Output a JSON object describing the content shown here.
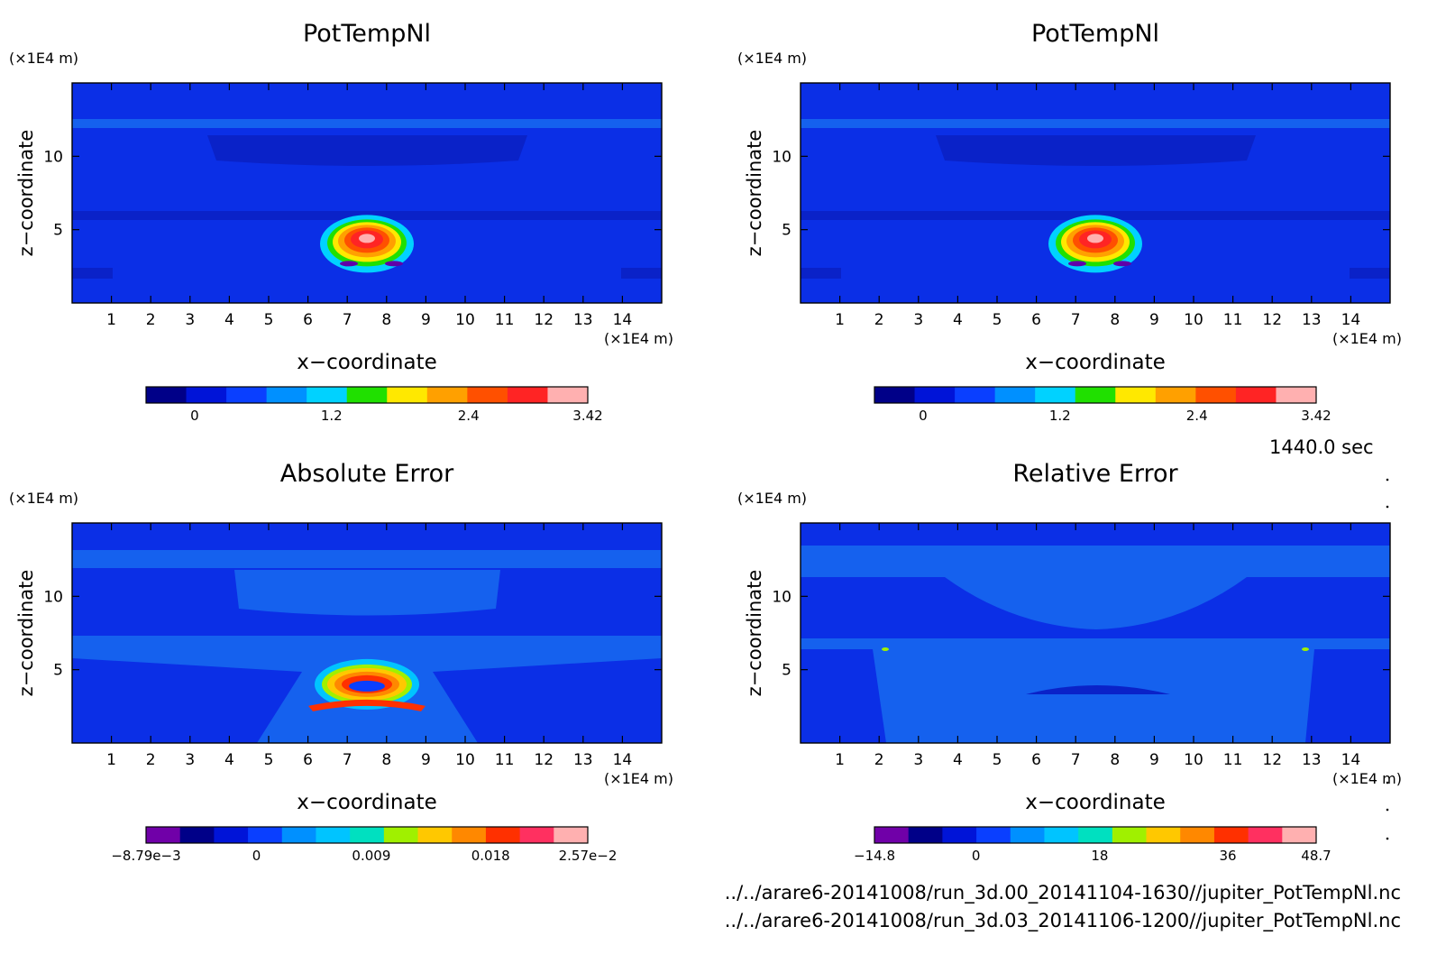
{
  "time_label": "1440.0 sec",
  "footer_lines": [
    "../../arare6-20141008/run_3d.00_20141104-1630//jupiter_PotTempNl.nc",
    "../../arare6-20141008/run_3d.03_20141106-1200//jupiter_PotTempNl.nc"
  ],
  "colors": {
    "background_field": "#0b2fe6",
    "layer_light": "#1561ee",
    "layer_dark": "#0a22c8"
  },
  "chart_data": [
    {
      "type": "heatmap",
      "title": "PotTempNl",
      "xlabel": "x−coordinate",
      "ylabel": "z−coordinate",
      "x_unit": "(×1E4 m)",
      "y_unit": "(×1E4 m)",
      "xlim": [
        0,
        15
      ],
      "ylim": [
        0,
        15
      ],
      "x_ticks": [
        1,
        2,
        3,
        4,
        5,
        6,
        7,
        8,
        9,
        10,
        11,
        12,
        13,
        14
      ],
      "y_ticks": [
        5,
        10
      ],
      "feature": {
        "x": 7.5,
        "z": 4.4,
        "peak": 3.42
      },
      "colorbar": {
        "colors": [
          "#000088",
          "#0014d8",
          "#0a3fff",
          "#0090ff",
          "#00d2ff",
          "#20e000",
          "#ffe800",
          "#ffa000",
          "#ff5000",
          "#ff2424",
          "#ffb0b0"
        ],
        "ticks": [
          "0",
          "1.2",
          "2.4",
          "3.42"
        ],
        "tick_pos": [
          0.11,
          0.42,
          0.73,
          1.0
        ]
      }
    },
    {
      "type": "heatmap",
      "title": "PotTempNl",
      "xlabel": "x−coordinate",
      "ylabel": "z−coordinate",
      "x_unit": "(×1E4 m)",
      "y_unit": "(×1E4 m)",
      "xlim": [
        0,
        15
      ],
      "ylim": [
        0,
        15
      ],
      "x_ticks": [
        1,
        2,
        3,
        4,
        5,
        6,
        7,
        8,
        9,
        10,
        11,
        12,
        13,
        14
      ],
      "y_ticks": [
        5,
        10
      ],
      "feature": {
        "x": 7.5,
        "z": 4.4,
        "peak": 3.42
      },
      "colorbar": {
        "colors": [
          "#000088",
          "#0014d8",
          "#0a3fff",
          "#0090ff",
          "#00d2ff",
          "#20e000",
          "#ffe800",
          "#ffa000",
          "#ff5000",
          "#ff2424",
          "#ffb0b0"
        ],
        "ticks": [
          "0",
          "1.2",
          "2.4",
          "3.42"
        ],
        "tick_pos": [
          0.11,
          0.42,
          0.73,
          1.0
        ]
      }
    },
    {
      "type": "heatmap",
      "title": "Absolute Error",
      "xlabel": "x−coordinate",
      "ylabel": "z−coordinate",
      "x_unit": "(×1E4 m)",
      "y_unit": "(×1E4 m)",
      "xlim": [
        0,
        15
      ],
      "ylim": [
        0,
        15
      ],
      "x_ticks": [
        1,
        2,
        3,
        4,
        5,
        6,
        7,
        8,
        9,
        10,
        11,
        12,
        13,
        14
      ],
      "y_ticks": [
        5,
        10
      ],
      "feature": {
        "x": 7.5,
        "z": 4.0
      },
      "colorbar": {
        "colors": [
          "#7000a8",
          "#000088",
          "#0014d8",
          "#0a3fff",
          "#0090ff",
          "#00c4ff",
          "#00e0c0",
          "#a0f000",
          "#ffc800",
          "#ff8800",
          "#ff3000",
          "#ff3060",
          "#ffb0b0"
        ],
        "ticks": [
          "−8.79e−3",
          "0",
          "0.009",
          "0.018",
          "2.57e−2"
        ],
        "tick_pos": [
          0.0,
          0.25,
          0.51,
          0.78,
          1.0
        ]
      }
    },
    {
      "type": "heatmap",
      "title": "Relative Error",
      "xlabel": "x−coordinate",
      "ylabel": "z−coordinate",
      "x_unit": "(×1E4 m)",
      "y_unit": "(×1E4 m)",
      "xlim": [
        0,
        15
      ],
      "ylim": [
        0,
        15
      ],
      "x_ticks": [
        1,
        2,
        3,
        4,
        5,
        6,
        7,
        8,
        9,
        10,
        11,
        12,
        13,
        14
      ],
      "y_ticks": [
        5,
        10
      ],
      "colorbar": {
        "colors": [
          "#7000a8",
          "#000088",
          "#0014d8",
          "#0a3fff",
          "#0090ff",
          "#00c4ff",
          "#00e0c0",
          "#a0f000",
          "#ffc800",
          "#ff8800",
          "#ff3000",
          "#ff3060",
          "#ffb0b0"
        ],
        "ticks": [
          "−14.8",
          "0",
          "18",
          "36",
          "48.7"
        ],
        "tick_pos": [
          0.0,
          0.23,
          0.51,
          0.8,
          1.0
        ]
      }
    }
  ]
}
